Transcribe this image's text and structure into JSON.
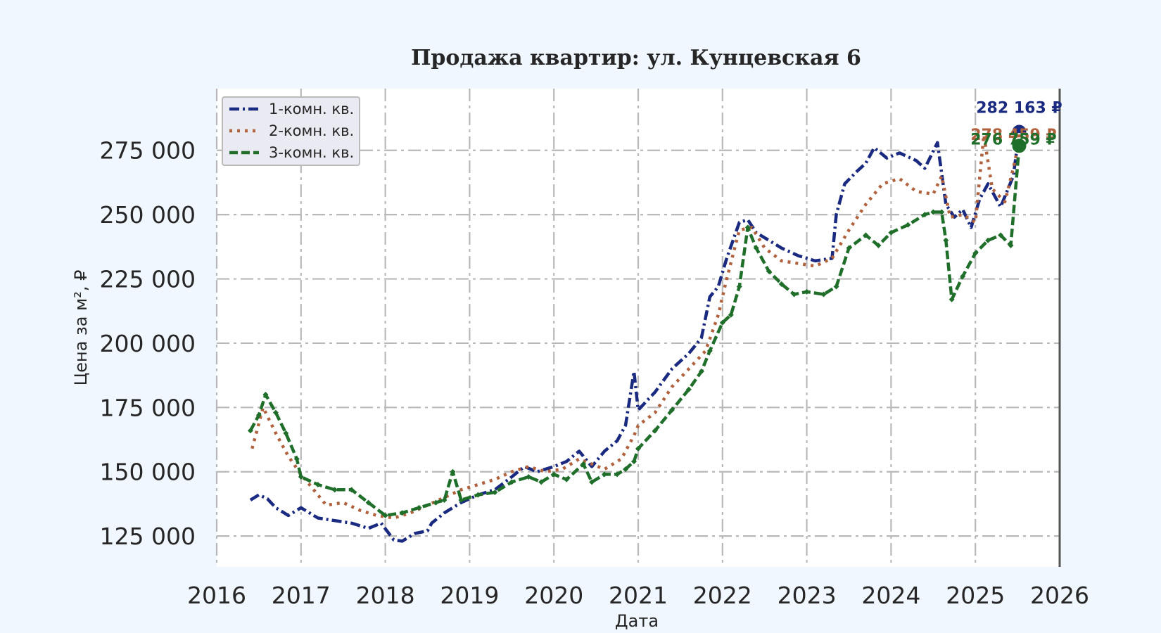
{
  "chart_data": {
    "type": "line",
    "title": "Продажа квартир: ул. Кунцевская 6",
    "xlabel": "Дата",
    "ylabel": "Цена за м², ₽",
    "xlim": [
      2016,
      2026
    ],
    "ylim": [
      113000,
      299000
    ],
    "x_ticks": [
      "2016",
      "2017",
      "2018",
      "2019",
      "2020",
      "2021",
      "2022",
      "2023",
      "2024",
      "2025",
      "2026"
    ],
    "y_ticks": [
      "125 000",
      "150 000",
      "175 000",
      "200 000",
      "225 000",
      "250 000",
      "275 000"
    ],
    "y_tick_values": [
      125000,
      150000,
      175000,
      200000,
      225000,
      250000,
      275000
    ],
    "grid": true,
    "legend_position": "top-left",
    "series": [
      {
        "name": "1-комн. кв.",
        "color": "#1a2a80",
        "style": "dashdot",
        "end_label": "282 163 ₽",
        "x": [
          2016.4,
          2016.5,
          2016.6,
          2016.7,
          2016.85,
          2017.0,
          2017.2,
          2017.4,
          2017.6,
          2017.8,
          2017.95,
          2018.1,
          2018.2,
          2018.35,
          2018.5,
          2018.55,
          2018.7,
          2018.9,
          2019.1,
          2019.3,
          2019.5,
          2019.65,
          2019.8,
          2020.0,
          2020.15,
          2020.3,
          2020.45,
          2020.6,
          2020.75,
          2020.85,
          2020.95,
          2021.0,
          2021.2,
          2021.4,
          2021.6,
          2021.75,
          2021.85,
          2021.95,
          2022.05,
          2022.2,
          2022.3,
          2022.4,
          2022.55,
          2022.7,
          2022.9,
          2023.1,
          2023.3,
          2023.35,
          2023.45,
          2023.6,
          2023.7,
          2023.8,
          2023.95,
          2024.1,
          2024.3,
          2024.4,
          2024.55,
          2024.65,
          2024.75,
          2024.85,
          2024.95,
          2025.05,
          2025.15,
          2025.3,
          2025.45,
          2025.52
        ],
        "y": [
          139000,
          141000,
          139500,
          136000,
          133000,
          136000,
          132000,
          131000,
          130000,
          128000,
          130000,
          123500,
          123000,
          126000,
          127000,
          130000,
          134000,
          138000,
          141000,
          143000,
          148000,
          152000,
          150000,
          152000,
          154000,
          158000,
          152000,
          158000,
          162000,
          168000,
          189000,
          174000,
          181000,
          190000,
          196000,
          202000,
          218000,
          222000,
          233000,
          247000,
          248000,
          243000,
          240000,
          237000,
          234000,
          232000,
          233000,
          250000,
          262000,
          267000,
          270000,
          276000,
          272000,
          274000,
          271000,
          268000,
          278000,
          254000,
          249000,
          252000,
          245000,
          256000,
          262000,
          253000,
          265000,
          282163
        ]
      },
      {
        "name": "2-комн. кв.",
        "color": "#b0623e",
        "style": "dotted",
        "end_label": "278 459 ₽",
        "x": [
          2016.42,
          2016.55,
          2016.7,
          2016.85,
          2017.0,
          2017.15,
          2017.3,
          2017.5,
          2017.7,
          2017.9,
          2018.1,
          2018.3,
          2018.5,
          2018.7,
          2018.9,
          2019.1,
          2019.3,
          2019.5,
          2019.7,
          2019.9,
          2020.1,
          2020.3,
          2020.45,
          2020.6,
          2020.8,
          2020.95,
          2021.0,
          2021.2,
          2021.4,
          2021.6,
          2021.8,
          2021.95,
          2022.05,
          2022.2,
          2022.35,
          2022.5,
          2022.7,
          2022.9,
          2023.1,
          2023.3,
          2023.5,
          2023.7,
          2023.9,
          2024.1,
          2024.3,
          2024.5,
          2024.6,
          2024.7,
          2024.85,
          2025.0,
          2025.1,
          2025.2,
          2025.35,
          2025.45,
          2025.52
        ],
        "y": [
          159000,
          175000,
          165000,
          156000,
          149000,
          143000,
          137000,
          138000,
          135000,
          133000,
          132000,
          134000,
          137000,
          140000,
          143000,
          145000,
          147000,
          150000,
          152000,
          150000,
          151000,
          155000,
          153000,
          151000,
          155000,
          164000,
          168000,
          173000,
          183000,
          190000,
          197000,
          211000,
          225000,
          244000,
          245000,
          237000,
          232000,
          231000,
          230000,
          233000,
          244000,
          254000,
          262000,
          264000,
          259000,
          258000,
          265000,
          249000,
          250000,
          247000,
          281000,
          260000,
          255000,
          268000,
          278459
        ]
      },
      {
        "name": "3-комн. кв.",
        "color": "#1f6e2a",
        "style": "dashed-diamond",
        "end_label": "276 759 ₽",
        "x": [
          2016.4,
          2016.5,
          2016.58,
          2016.7,
          2016.82,
          2016.95,
          2017.0,
          2017.2,
          2017.4,
          2017.6,
          2017.8,
          2018.0,
          2018.2,
          2018.4,
          2018.6,
          2018.7,
          2018.8,
          2018.9,
          2019.1,
          2019.3,
          2019.5,
          2019.7,
          2019.85,
          2020.0,
          2020.15,
          2020.35,
          2020.45,
          2020.6,
          2020.75,
          2020.85,
          2020.95,
          2021.0,
          2021.2,
          2021.4,
          2021.6,
          2021.75,
          2021.85,
          2022.0,
          2022.1,
          2022.2,
          2022.3,
          2022.4,
          2022.55,
          2022.7,
          2022.85,
          2023.0,
          2023.2,
          2023.35,
          2023.5,
          2023.7,
          2023.85,
          2024.0,
          2024.2,
          2024.4,
          2024.5,
          2024.6,
          2024.65,
          2024.72,
          2024.85,
          2025.0,
          2025.15,
          2025.3,
          2025.42,
          2025.52
        ],
        "y": [
          166000,
          172000,
          180000,
          173000,
          165000,
          155000,
          148000,
          145000,
          143000,
          143000,
          138000,
          133000,
          134000,
          136000,
          138000,
          139000,
          150000,
          139000,
          141000,
          142000,
          146000,
          148000,
          146000,
          149000,
          147000,
          153000,
          146000,
          149000,
          149000,
          151000,
          154000,
          159000,
          166000,
          174000,
          182000,
          189000,
          197000,
          208000,
          211000,
          222000,
          245000,
          237000,
          228000,
          223000,
          219000,
          220000,
          219000,
          222000,
          237000,
          242000,
          238000,
          243000,
          246000,
          250000,
          251000,
          251000,
          240000,
          217000,
          226000,
          235000,
          240000,
          242000,
          238000,
          276759
        ]
      }
    ]
  }
}
